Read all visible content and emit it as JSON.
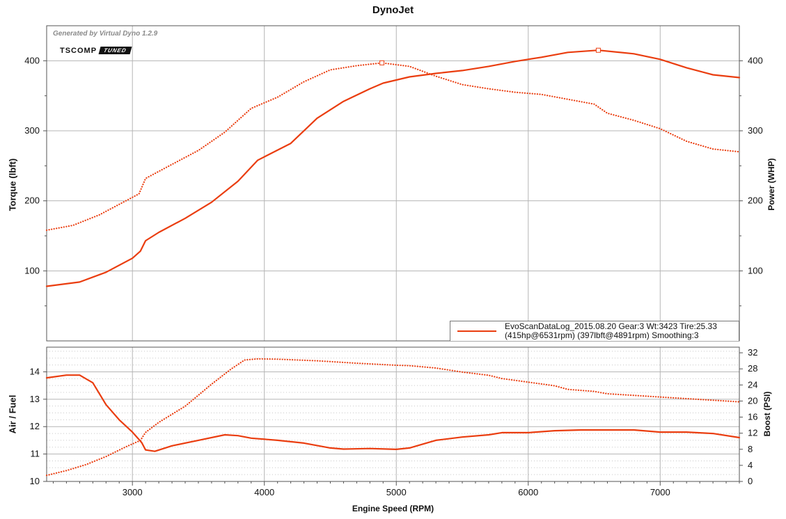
{
  "title": "DynoJet",
  "generated_by": "Generated by Virtual Dyno 1.2.9",
  "logo": {
    "text": "TSCOMP",
    "badge": "TUNED"
  },
  "x_axis": {
    "label": "Engine Speed (RPM)",
    "ticks": [
      "3000",
      "4000",
      "5000",
      "6000",
      "7000"
    ],
    "range": [
      2350,
      7600
    ]
  },
  "colors": {
    "series": "#ea3d0f",
    "grid": "#b5b5b5",
    "axis": "#555555"
  },
  "legend": {
    "line1": "EvoScanDataLog_2015.08.20 Gear:3 Wt:3423 Tire:25.33",
    "line2": "(415hp@6531rpm) (397lbft@4891rpm) Smoothing:3",
    "placement": "bottom-right of top panel"
  },
  "chart_data": [
    {
      "type": "line",
      "panel": "top",
      "y_left": {
        "label": "Torque (lbft)",
        "ticks": [
          "100",
          "200",
          "300",
          "400"
        ],
        "range": [
          0,
          450
        ]
      },
      "y_right": {
        "label": "Power (WHP)",
        "ticks": [
          "100",
          "200",
          "300",
          "400"
        ],
        "range": [
          0,
          450
        ]
      },
      "grid": true,
      "series": [
        {
          "role": "power",
          "style": "solid",
          "axis": "right",
          "peak": {
            "x": 6531,
            "y": 415
          },
          "points": [
            [
              2350,
              78
            ],
            [
              2600,
              84
            ],
            [
              2800,
              98
            ],
            [
              3000,
              118
            ],
            [
              3060,
              128
            ],
            [
              3100,
              143
            ],
            [
              3200,
              155
            ],
            [
              3400,
              175
            ],
            [
              3600,
              198
            ],
            [
              3800,
              228
            ],
            [
              3950,
              258
            ],
            [
              4200,
              282
            ],
            [
              4400,
              318
            ],
            [
              4600,
              342
            ],
            [
              4800,
              360
            ],
            [
              4900,
              368
            ],
            [
              5100,
              377
            ],
            [
              5300,
              382
            ],
            [
              5500,
              386
            ],
            [
              5700,
              392
            ],
            [
              5900,
              399
            ],
            [
              6100,
              405
            ],
            [
              6300,
              412
            ],
            [
              6531,
              415
            ],
            [
              6800,
              410
            ],
            [
              7000,
              402
            ],
            [
              7200,
              390
            ],
            [
              7400,
              380
            ],
            [
              7600,
              376
            ]
          ]
        },
        {
          "role": "torque",
          "style": "dotted",
          "axis": "left",
          "peak": {
            "x": 4891,
            "y": 397
          },
          "points": [
            [
              2350,
              158
            ],
            [
              2550,
              165
            ],
            [
              2750,
              180
            ],
            [
              2950,
              200
            ],
            [
              3050,
              210
            ],
            [
              3100,
              232
            ],
            [
              3300,
              252
            ],
            [
              3500,
              272
            ],
            [
              3700,
              298
            ],
            [
              3900,
              332
            ],
            [
              4100,
              348
            ],
            [
              4300,
              370
            ],
            [
              4500,
              387
            ],
            [
              4700,
              393
            ],
            [
              4891,
              397
            ],
            [
              5100,
              392
            ],
            [
              5300,
              378
            ],
            [
              5500,
              366
            ],
            [
              5700,
              360
            ],
            [
              5900,
              355
            ],
            [
              6100,
              352
            ],
            [
              6300,
              345
            ],
            [
              6500,
              338
            ],
            [
              6600,
              325
            ],
            [
              6800,
              315
            ],
            [
              7000,
              303
            ],
            [
              7200,
              285
            ],
            [
              7400,
              274
            ],
            [
              7600,
              270
            ]
          ]
        }
      ]
    },
    {
      "type": "line",
      "panel": "bottom",
      "y_left": {
        "label": "Air / Fuel",
        "ticks": [
          "10",
          "11",
          "12",
          "13",
          "14"
        ],
        "range": [
          10,
          14.9
        ]
      },
      "y_right": {
        "label": "Boost (PSI)",
        "ticks": [
          "0",
          "4",
          "8",
          "12",
          "16",
          "20",
          "24",
          "28",
          "32"
        ],
        "range": [
          0,
          33.4
        ]
      },
      "grid": true,
      "series": [
        {
          "role": "air-fuel",
          "style": "solid",
          "axis": "left",
          "points": [
            [
              2350,
              13.78
            ],
            [
              2500,
              13.88
            ],
            [
              2600,
              13.88
            ],
            [
              2700,
              13.6
            ],
            [
              2800,
              12.8
            ],
            [
              2900,
              12.25
            ],
            [
              3000,
              11.8
            ],
            [
              3070,
              11.42
            ],
            [
              3100,
              11.15
            ],
            [
              3170,
              11.1
            ],
            [
              3300,
              11.3
            ],
            [
              3500,
              11.5
            ],
            [
              3700,
              11.7
            ],
            [
              3800,
              11.67
            ],
            [
              3900,
              11.58
            ],
            [
              4100,
              11.5
            ],
            [
              4300,
              11.4
            ],
            [
              4500,
              11.22
            ],
            [
              4600,
              11.18
            ],
            [
              4800,
              11.2
            ],
            [
              5000,
              11.17
            ],
            [
              5100,
              11.22
            ],
            [
              5300,
              11.5
            ],
            [
              5500,
              11.62
            ],
            [
              5700,
              11.7
            ],
            [
              5800,
              11.78
            ],
            [
              6000,
              11.78
            ],
            [
              6200,
              11.85
            ],
            [
              6400,
              11.88
            ],
            [
              6600,
              11.88
            ],
            [
              6800,
              11.88
            ],
            [
              7000,
              11.8
            ],
            [
              7200,
              11.8
            ],
            [
              7400,
              11.75
            ],
            [
              7600,
              11.6
            ]
          ]
        },
        {
          "role": "boost",
          "style": "dotted",
          "axis": "right",
          "points": [
            [
              2350,
              1.5
            ],
            [
              2500,
              2.7
            ],
            [
              2650,
              4.2
            ],
            [
              2800,
              6.2
            ],
            [
              2950,
              8.6
            ],
            [
              3060,
              10.2
            ],
            [
              3100,
              12.2
            ],
            [
              3200,
              14.7
            ],
            [
              3400,
              18.7
            ],
            [
              3600,
              24.2
            ],
            [
              3750,
              28.0
            ],
            [
              3850,
              30.2
            ],
            [
              3950,
              30.5
            ],
            [
              4100,
              30.4
            ],
            [
              4400,
              30.0
            ],
            [
              4700,
              29.4
            ],
            [
              5000,
              28.9
            ],
            [
              5100,
              28.8
            ],
            [
              5300,
              28.2
            ],
            [
              5500,
              27.2
            ],
            [
              5700,
              26.4
            ],
            [
              5800,
              25.6
            ],
            [
              6000,
              24.7
            ],
            [
              6200,
              23.8
            ],
            [
              6300,
              22.9
            ],
            [
              6500,
              22.4
            ],
            [
              6600,
              21.8
            ],
            [
              6800,
              21.4
            ],
            [
              7000,
              21.0
            ],
            [
              7200,
              20.6
            ],
            [
              7400,
              20.2
            ],
            [
              7600,
              19.8
            ]
          ]
        }
      ]
    }
  ]
}
